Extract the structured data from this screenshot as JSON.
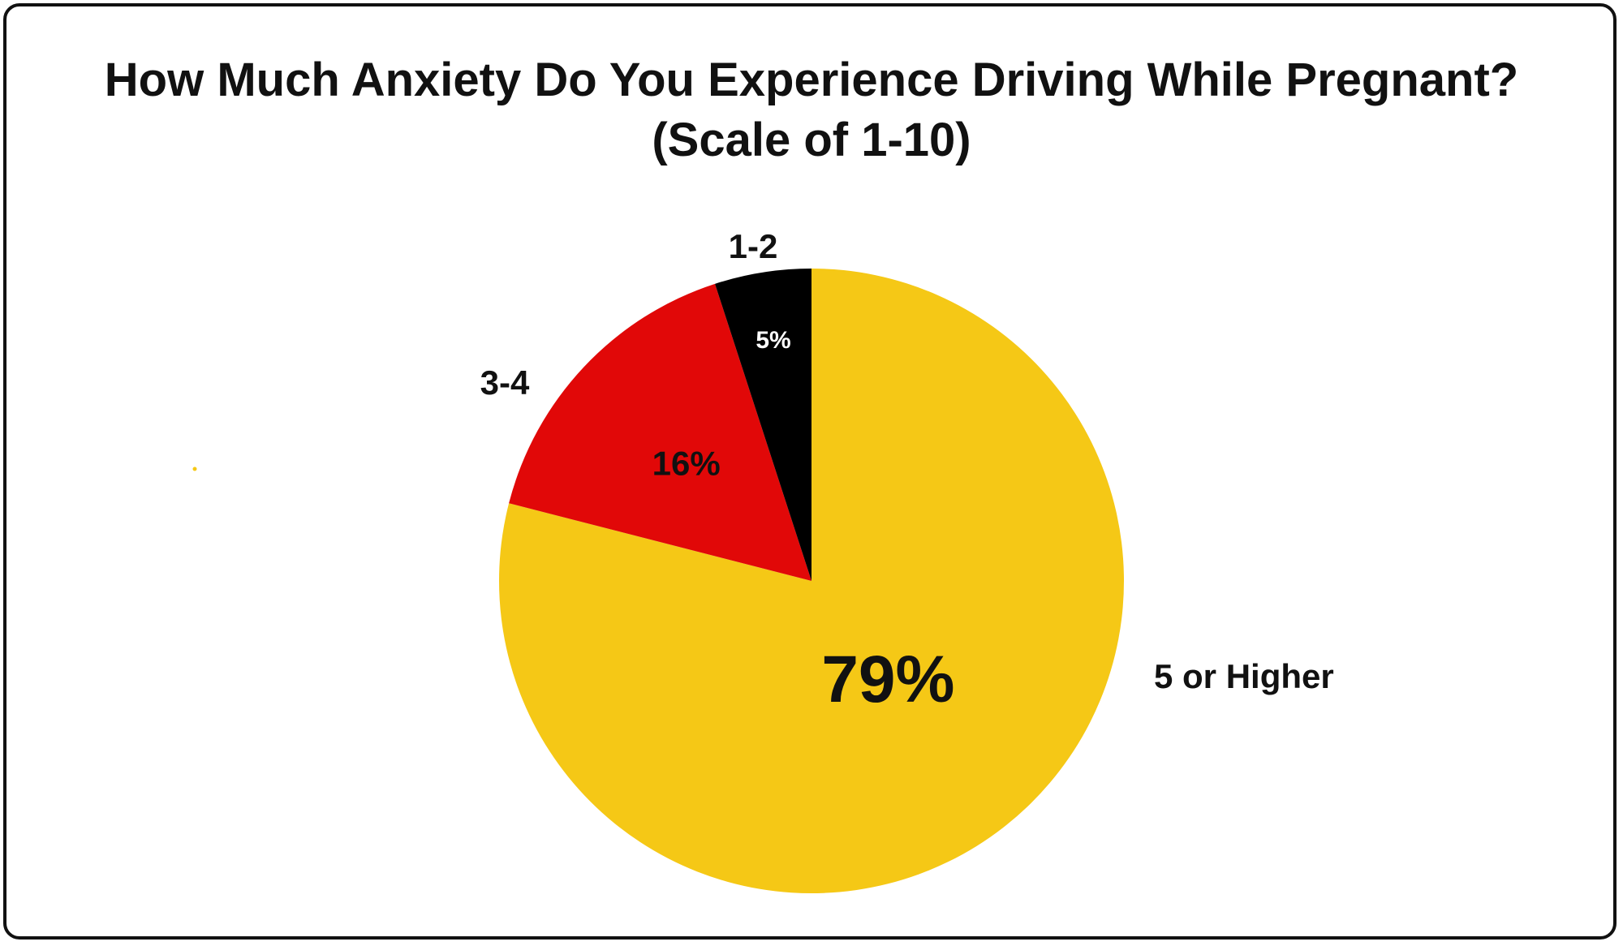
{
  "chart_data": {
    "type": "pie",
    "title": "How Much Anxiety Do You Experience Driving While Pregnant?",
    "subtitle": "(Scale of 1-10)",
    "start_angle_deg": 0,
    "direction": "clockwise",
    "slices": [
      {
        "label": "5 or Higher",
        "value": 79,
        "value_label": "79%",
        "color": "#F5C816",
        "text_color": "#111111"
      },
      {
        "label": "3-4",
        "value": 16,
        "value_label": "16%",
        "color": "#E10808",
        "text_color": "#111111"
      },
      {
        "label": "1-2",
        "value": 5,
        "value_label": "5%",
        "color": "#000000",
        "text_color": "#ffffff"
      }
    ]
  }
}
